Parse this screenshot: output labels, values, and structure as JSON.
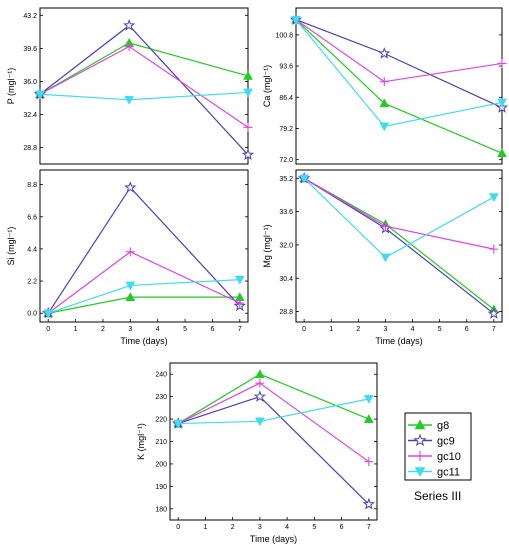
{
  "colors": {
    "g8": "#22cc22",
    "gc9": "#4b3fb8",
    "gc10": "#e243e2",
    "gc11": "#3fdcf0"
  },
  "legend": {
    "entries": [
      {
        "key": "g8",
        "label": "g8",
        "marker": "triangle-up"
      },
      {
        "key": "gc9",
        "label": "gc9",
        "marker": "star-open"
      },
      {
        "key": "gc10",
        "label": "gc10",
        "marker": "plus"
      },
      {
        "key": "gc11",
        "label": "gc11",
        "marker": "triangle-down"
      }
    ]
  },
  "series_label": "Series III",
  "chart_data": [
    {
      "id": "P",
      "type": "line",
      "ylabel": "P (mgl⁻¹)",
      "xlabel": "",
      "xlim": [
        0,
        7
      ],
      "xticks": [],
      "ylim": [
        27,
        44
      ],
      "yticks": [
        "28.8",
        "32.4",
        "36.0",
        "39.6",
        "43.2"
      ],
      "x": [
        0,
        3,
        7
      ],
      "series": [
        {
          "name": "g8",
          "values": [
            34.6,
            40.2,
            36.6
          ]
        },
        {
          "name": "gc9",
          "values": [
            34.6,
            42.1,
            28.0
          ]
        },
        {
          "name": "gc10",
          "values": [
            34.6,
            39.8,
            31.0
          ]
        },
        {
          "name": "gc11",
          "values": [
            34.6,
            34.0,
            34.8
          ]
        }
      ]
    },
    {
      "id": "Ca",
      "type": "line",
      "ylabel": "Ca (mgl⁻¹)",
      "xlabel": "",
      "xlim": [
        0,
        7
      ],
      "xticks": [],
      "ylim": [
        71,
        107
      ],
      "yticks": [
        "72.0",
        "79.2",
        "86.4",
        "93.6",
        "100.8"
      ],
      "x": [
        0,
        3,
        7
      ],
      "series": [
        {
          "name": "g8",
          "values": [
            104.3,
            85.0,
            73.5
          ]
        },
        {
          "name": "gc9",
          "values": [
            104.3,
            96.5,
            84.0
          ]
        },
        {
          "name": "gc10",
          "values": [
            104.3,
            90.0,
            94.2
          ]
        },
        {
          "name": "gc11",
          "values": [
            104.3,
            79.7,
            85.2
          ]
        }
      ]
    },
    {
      "id": "Si",
      "type": "line",
      "ylabel": "Si (mgl⁻¹)",
      "xlabel": "Time (days)",
      "xlim": [
        -0.3,
        7.3
      ],
      "xticks": [
        "0",
        "1",
        "2",
        "3",
        "4",
        "5",
        "6",
        "7"
      ],
      "ylim": [
        -0.6,
        9.8
      ],
      "yticks": [
        "0.0",
        "2.2",
        "4.4",
        "6.6",
        "8.8"
      ],
      "x": [
        0,
        3,
        7
      ],
      "series": [
        {
          "name": "g8",
          "values": [
            0.0,
            1.1,
            1.1
          ]
        },
        {
          "name": "gc9",
          "values": [
            0.0,
            8.6,
            0.5
          ]
        },
        {
          "name": "gc10",
          "values": [
            0.0,
            4.2,
            0.7
          ]
        },
        {
          "name": "gc11",
          "values": [
            0.0,
            1.9,
            2.3
          ]
        }
      ]
    },
    {
      "id": "Mg",
      "type": "line",
      "ylabel": "Mg (mgl⁻¹)",
      "xlabel": "Time (days)",
      "xlim": [
        -0.3,
        7.3
      ],
      "xticks": [
        "0",
        "1",
        "2",
        "3",
        "4",
        "5",
        "6",
        "7"
      ],
      "ylim": [
        28.3,
        35.6
      ],
      "yticks": [
        "28.8",
        "30.4",
        "32.0",
        "33.6",
        "35.2"
      ],
      "x": [
        0,
        3,
        7
      ],
      "series": [
        {
          "name": "g8",
          "values": [
            35.2,
            33.0,
            28.9
          ]
        },
        {
          "name": "gc9",
          "values": [
            35.2,
            32.8,
            28.7
          ]
        },
        {
          "name": "gc10",
          "values": [
            35.2,
            32.9,
            31.8
          ]
        },
        {
          "name": "gc11",
          "values": [
            35.2,
            31.4,
            34.3
          ]
        }
      ]
    },
    {
      "id": "K",
      "type": "line",
      "ylabel": "K (mgl⁻¹)",
      "xlabel": "Time (days)",
      "xlim": [
        -0.3,
        7.3
      ],
      "xticks": [
        "0",
        "1",
        "2",
        "3",
        "4",
        "5",
        "6",
        "7"
      ],
      "ylim": [
        175,
        245
      ],
      "yticks": [
        "180",
        "190",
        "200",
        "210",
        "220",
        "230",
        "240"
      ],
      "x": [
        0,
        3,
        7
      ],
      "series": [
        {
          "name": "g8",
          "values": [
            218,
            240,
            220
          ]
        },
        {
          "name": "gc9",
          "values": [
            218,
            230,
            182
          ]
        },
        {
          "name": "gc10",
          "values": [
            218,
            236,
            201
          ]
        },
        {
          "name": "gc11",
          "values": [
            218,
            219,
            229
          ]
        }
      ]
    }
  ]
}
